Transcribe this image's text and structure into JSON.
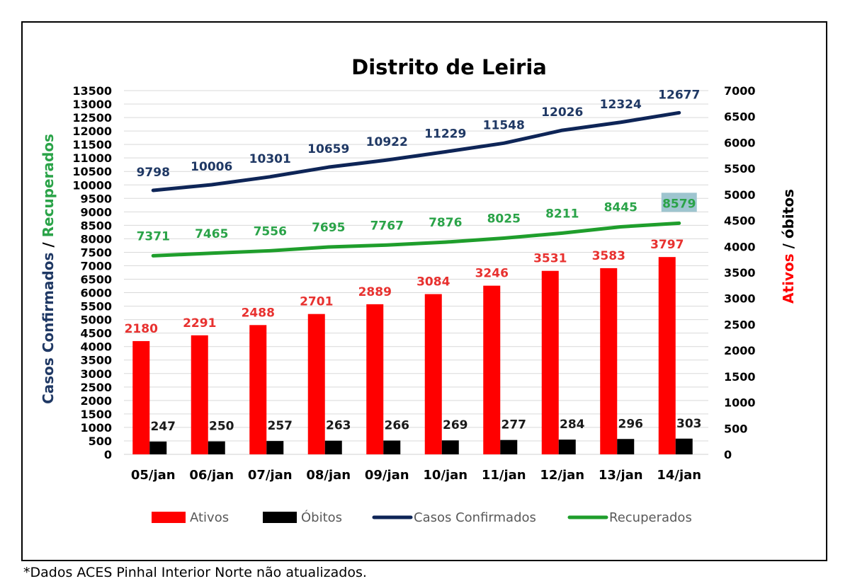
{
  "chart_data": {
    "type": "bar",
    "title": "Distrito de Leiria",
    "categories": [
      "05/jan",
      "06/jan",
      "07/jan",
      "08/jan",
      "09/jan",
      "10/jan",
      "11/jan",
      "12/jan",
      "13/jan",
      "14/jan"
    ],
    "y_left": {
      "label_part1": "Casos Confirmados",
      "label_sep": " / ",
      "label_part2": "Recuperados",
      "min": 0,
      "max": 13500,
      "step": 500
    },
    "y_right": {
      "label_part1": "Ativos",
      "label_sep": " / ",
      "label_part2": "óbitos",
      "min": 0,
      "max": 7000,
      "step": 500
    },
    "series": [
      {
        "name": "Ativos",
        "kind": "bar",
        "axis": "right",
        "color": "#ff0000",
        "label_color": "#e8312f",
        "values": [
          2180,
          2291,
          2488,
          2701,
          2889,
          3084,
          3246,
          3531,
          3583,
          3797
        ]
      },
      {
        "name": "Óbitos",
        "kind": "bar",
        "axis": "right",
        "color": "#000000",
        "label_color": "#1a1a1a",
        "values": [
          247,
          250,
          257,
          263,
          266,
          269,
          277,
          284,
          296,
          303
        ]
      },
      {
        "name": "Casos Confirmados",
        "kind": "line",
        "axis": "left",
        "color": "#0e2557",
        "label_color": "#1f3864",
        "values": [
          9798,
          10006,
          10301,
          10659,
          10922,
          11229,
          11548,
          12026,
          12324,
          12677
        ]
      },
      {
        "name": "Recuperados",
        "kind": "line",
        "axis": "left",
        "color": "#1f9e2c",
        "label_color": "#2aa348",
        "values": [
          7371,
          7465,
          7556,
          7695,
          7767,
          7876,
          8025,
          8211,
          8445,
          8579
        ]
      }
    ],
    "grid": true,
    "legend": "bottom",
    "highlight_label": {
      "series": "Recuperados",
      "index": 9,
      "color": "#9ec5cf"
    }
  },
  "footnote": "*Dados ACES Pinhal Interior Norte não atualizados."
}
